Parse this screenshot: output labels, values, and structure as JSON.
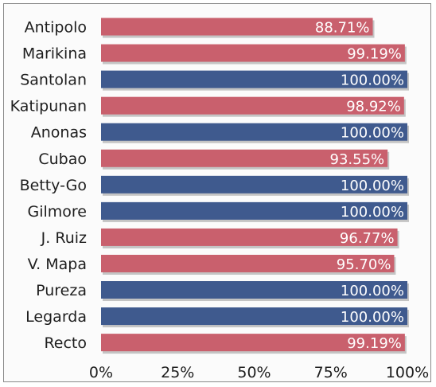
{
  "chart_data": {
    "type": "bar",
    "orientation": "horizontal",
    "categories": [
      "Antipolo",
      "Marikina",
      "Santolan",
      "Katipunan",
      "Anonas",
      "Cubao",
      "Betty-Go",
      "Gilmore",
      "J. Ruiz",
      "V. Mapa",
      "Pureza",
      "Legarda",
      "Recto"
    ],
    "values": [
      88.71,
      99.19,
      100.0,
      98.92,
      100.0,
      93.55,
      100.0,
      100.0,
      96.77,
      95.7,
      100.0,
      100.0,
      99.19
    ],
    "value_labels": [
      "88.71%",
      "99.19%",
      "100.00%",
      "98.92%",
      "100.00%",
      "93.55%",
      "100.00%",
      "100.00%",
      "96.77%",
      "95.70%",
      "100.00%",
      "100.00%",
      "99.19%"
    ],
    "bar_colors": [
      "#c9606d",
      "#c9606d",
      "#3f5a8e",
      "#c9606d",
      "#3f5a8e",
      "#c9606d",
      "#3f5a8e",
      "#3f5a8e",
      "#c9606d",
      "#c9606d",
      "#3f5a8e",
      "#3f5a8e",
      "#c9606d"
    ],
    "xlim": [
      0,
      100
    ],
    "xticks": [
      0,
      25,
      50,
      75,
      100
    ],
    "xtick_labels": [
      "0%",
      "25%",
      "50%",
      "75%",
      "100%"
    ],
    "grid": false,
    "legend": "none"
  }
}
